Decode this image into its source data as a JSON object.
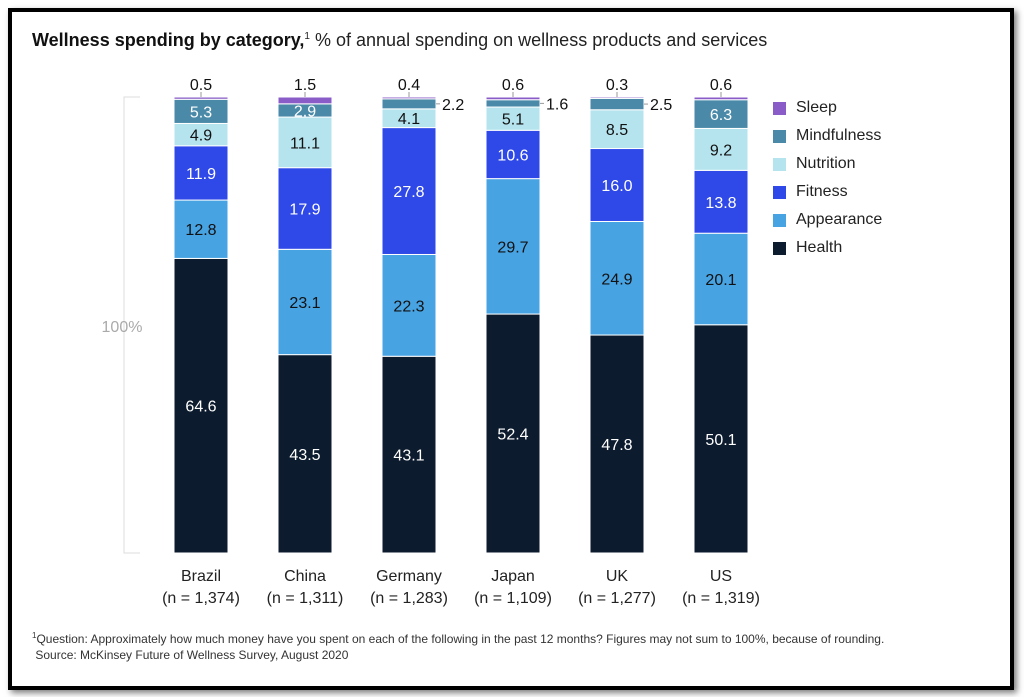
{
  "title": {
    "bold": "Wellness spending by category,",
    "footnote_mark": "1",
    "subtitle": "% of annual spending on wellness products and services"
  },
  "chart_data": {
    "type": "bar",
    "stacked": true,
    "orientation": "vertical",
    "total_label": "100%",
    "categories": [
      "Brazil",
      "China",
      "Germany",
      "Japan",
      "UK",
      "US"
    ],
    "sample_sizes": [
      "(n = 1,374)",
      "(n = 1,311)",
      "(n = 1,283)",
      "(n = 1,109)",
      "(n = 1,277)",
      "(n = 1,319)"
    ],
    "series": [
      {
        "name": "Health",
        "color": "#0d1b2e",
        "values": [
          64.6,
          43.5,
          43.1,
          52.4,
          47.8,
          50.1
        ]
      },
      {
        "name": "Appearance",
        "color": "#48a3e3",
        "values": [
          12.8,
          23.1,
          22.3,
          29.7,
          24.9,
          20.1
        ]
      },
      {
        "name": "Fitness",
        "color": "#2f48e8",
        "values": [
          11.9,
          17.9,
          27.8,
          10.6,
          16.0,
          13.8
        ]
      },
      {
        "name": "Nutrition",
        "color": "#b6e4ee",
        "values": [
          4.9,
          11.1,
          4.1,
          5.1,
          8.5,
          9.2
        ]
      },
      {
        "name": "Mindfulness",
        "color": "#4a8aa8",
        "values": [
          5.3,
          2.9,
          2.2,
          1.6,
          2.5,
          6.3
        ]
      },
      {
        "name": "Sleep",
        "color": "#8a5cc7",
        "values": [
          0.5,
          1.5,
          0.4,
          0.6,
          0.3,
          0.6
        ]
      }
    ],
    "legend_order": [
      "Sleep",
      "Mindfulness",
      "Nutrition",
      "Fitness",
      "Appearance",
      "Health"
    ],
    "legend_position": "right",
    "grid": false
  },
  "footnote": {
    "line1": "Question: Approximately how much money have you spent on each of the following in the past 12 months? Figures may not sum to 100%, because of rounding.",
    "mark": "1",
    "line2": "Source: McKinsey Future of Wellness Survey, August 2020"
  }
}
